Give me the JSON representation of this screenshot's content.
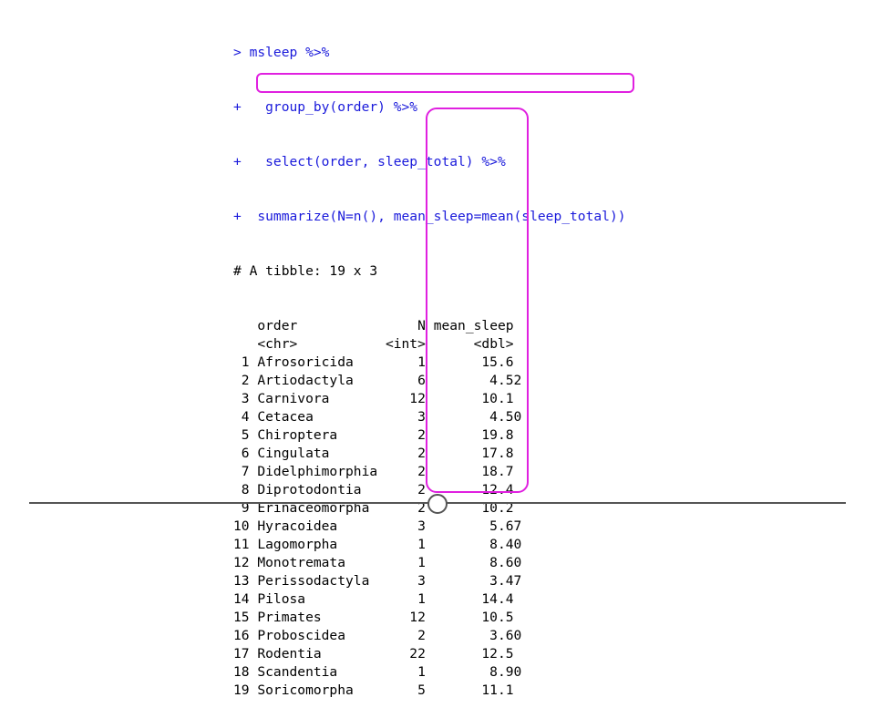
{
  "code": {
    "line1": "> msleep %>%",
    "line2": "+   group_by(order) %>%",
    "line3": "+   select(order, sleep_total) %>%",
    "line4_prompt": "+  ",
    "line4_code": "summarize(N=n(), mean_sleep=mean(sleep_total))"
  },
  "tibble": {
    "header": "# A tibble: 19 x 3",
    "columns": [
      "order",
      "N",
      "mean_sleep"
    ],
    "types": [
      "<chr>",
      "<int>",
      "<dbl>"
    ],
    "rows": [
      [
        "1",
        "Afrosoricida",
        "1",
        "15.6"
      ],
      [
        "2",
        "Artiodactyla",
        "6",
        "4.52"
      ],
      [
        "3",
        "Carnivora",
        "12",
        "10.1"
      ],
      [
        "4",
        "Cetacea",
        "3",
        "4.50"
      ],
      [
        "5",
        "Chiroptera",
        "2",
        "19.8"
      ],
      [
        "6",
        "Cingulata",
        "2",
        "17.8"
      ],
      [
        "7",
        "Didelphimorphia",
        "2",
        "18.7"
      ],
      [
        "8",
        "Diprotodontia",
        "2",
        "12.4"
      ],
      [
        "9",
        "Erinaceomorpha",
        "2",
        "10.2"
      ],
      [
        "10",
        "Hyracoidea",
        "3",
        "5.67"
      ],
      [
        "11",
        "Lagomorpha",
        "1",
        "8.40"
      ],
      [
        "12",
        "Monotremata",
        "1",
        "8.60"
      ],
      [
        "13",
        "Perissodactyla",
        "3",
        "3.47"
      ],
      [
        "14",
        "Pilosa",
        "1",
        "14.4"
      ],
      [
        "15",
        "Primates",
        "12",
        "10.5"
      ],
      [
        "16",
        "Proboscidea",
        "2",
        "3.60"
      ],
      [
        "17",
        "Rodentia",
        "22",
        "12.5"
      ],
      [
        "18",
        "Scandentia",
        "1",
        "8.90"
      ],
      [
        "19",
        "Soricomorpha",
        "5",
        "11.1"
      ]
    ]
  },
  "colors": {
    "code": "#1a1adb",
    "highlight": "#e020e0",
    "slider": "#555555"
  },
  "slider": {
    "position_fraction": 0.5
  }
}
